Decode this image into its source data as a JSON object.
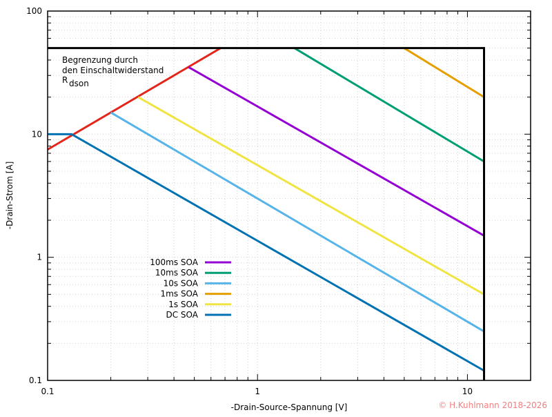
{
  "chart_data": {
    "type": "line",
    "xlabel": "-Drain-Source-Spannung [V]",
    "ylabel": "-Drain-Strom [A]",
    "x_scale": "log",
    "y_scale": "log",
    "xlim": [
      0.1,
      20
    ],
    "ylim": [
      0.1,
      100
    ],
    "grid": true,
    "x_ticks": [
      {
        "value": 0.1,
        "label": "0.1"
      },
      {
        "value": 1,
        "label": "1"
      },
      {
        "value": 10,
        "label": "10"
      }
    ],
    "y_ticks": [
      {
        "value": 0.1,
        "label": "0.1"
      },
      {
        "value": 1,
        "label": "1"
      },
      {
        "value": 10,
        "label": "10"
      },
      {
        "value": 100,
        "label": "100"
      }
    ],
    "legend_position": "bottom-left",
    "annotation": {
      "line1": "Begrenzung durch",
      "line2": "den Einschaltwiderstand",
      "line3_main": "R",
      "line3_sub": "dson"
    },
    "boundary": {
      "color": "#000000",
      "points": [
        [
          0.1,
          50
        ],
        [
          12,
          50
        ],
        [
          12,
          0.1
        ]
      ]
    },
    "rdson_line": {
      "color": "#e3261b",
      "points": [
        [
          0.1,
          7.5
        ],
        [
          0.667,
          50
        ]
      ]
    },
    "series": [
      {
        "name": "100ms SOA",
        "color": "#9400d3",
        "points": [
          [
            0.47,
            35
          ],
          [
            12,
            1.5
          ]
        ]
      },
      {
        "name": "10ms SOA",
        "color": "#009e73",
        "points": [
          [
            1.5,
            50
          ],
          [
            12,
            6
          ]
        ]
      },
      {
        "name": "10s SOA",
        "color": "#56b4e9",
        "points": [
          [
            0.2,
            15
          ],
          [
            12,
            0.25
          ]
        ]
      },
      {
        "name": "1ms SOA",
        "color": "#e69f00",
        "points": [
          [
            5,
            50
          ],
          [
            12,
            20
          ]
        ]
      },
      {
        "name": "1s SOA",
        "color": "#f0e442",
        "points": [
          [
            0.27,
            20
          ],
          [
            12,
            0.5
          ]
        ]
      },
      {
        "name": "DC SOA",
        "color": "#0072b2",
        "points": [
          [
            0.1,
            10
          ],
          [
            0.13,
            10
          ],
          [
            12,
            0.12
          ]
        ]
      }
    ]
  },
  "copyright": "© H.Kuhlmann 2018-2026"
}
